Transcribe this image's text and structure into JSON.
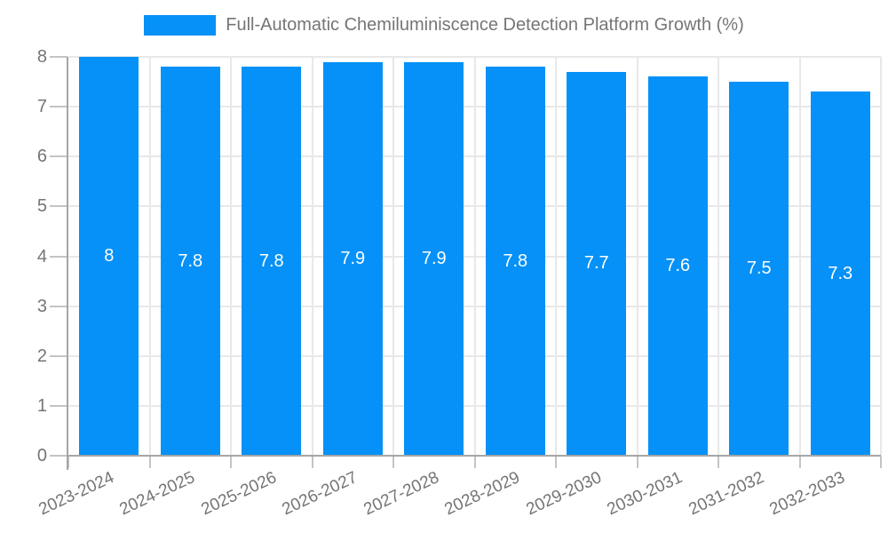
{
  "colors": {
    "bar": "#0591f7",
    "grid": "#e8e8e8",
    "axis": "#a6a6a6",
    "tick": "#c4c4c4",
    "text": "#757575",
    "value_label": "#ffffff",
    "background": "#ffffff"
  },
  "legend": {
    "label": "Full-Automatic Chemiluminiscence Detection Platform Growth (%)"
  },
  "chart_data": {
    "type": "bar",
    "title": "Full-Automatic Chemiluminiscence Detection Platform Growth (%)",
    "categories": [
      "2023-2024",
      "2024-2025",
      "2025-2026",
      "2026-2027",
      "2027-2028",
      "2028-2029",
      "2029-2030",
      "2030-2031",
      "2031-2032",
      "2032-2033"
    ],
    "values": [
      8,
      7.8,
      7.8,
      7.9,
      7.9,
      7.8,
      7.7,
      7.6,
      7.5,
      7.3
    ],
    "value_labels": [
      "8",
      "7.8",
      "7.8",
      "7.9",
      "7.9",
      "7.8",
      "7.7",
      "7.6",
      "7.5",
      "7.3"
    ],
    "xlabel": "",
    "ylabel": "",
    "ylim": [
      0,
      8
    ],
    "yticks": [
      0,
      1,
      2,
      3,
      4,
      5,
      6,
      7,
      8
    ],
    "grid": true,
    "legend_position": "top",
    "x_label_rotation_deg": -25
  }
}
